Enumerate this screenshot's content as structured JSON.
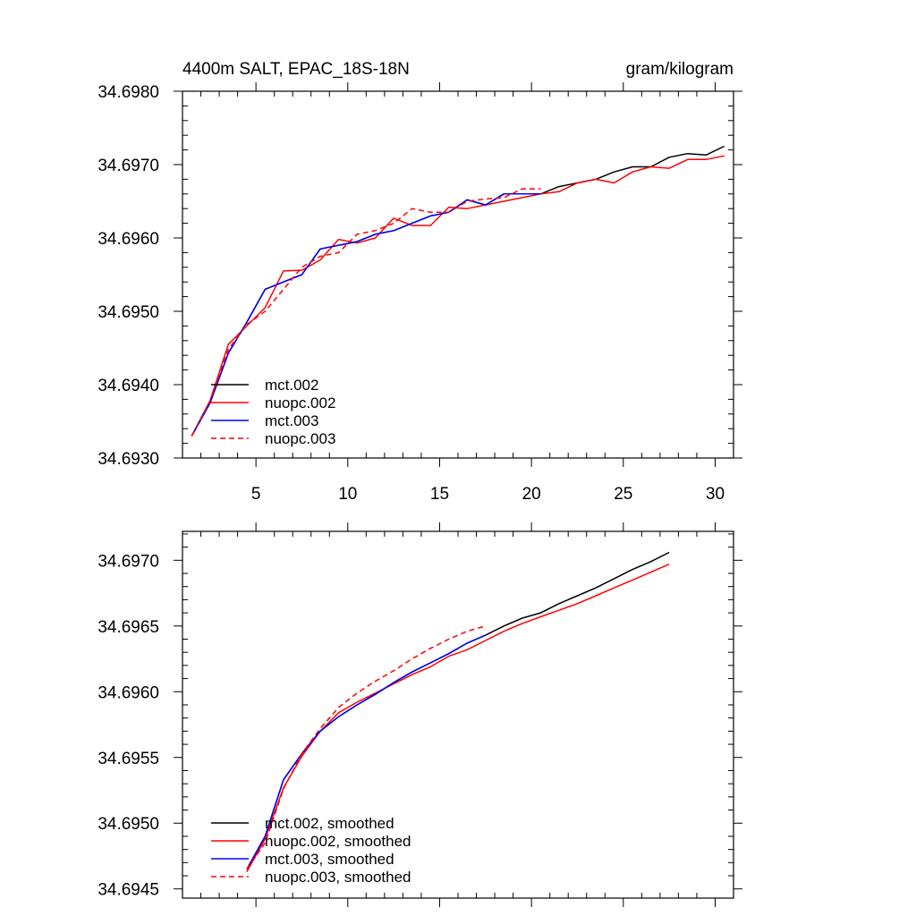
{
  "chart_data": [
    {
      "type": "line",
      "title": "4400m SALT, EPAC_18S-18N",
      "units": "gram/kilogram",
      "xlabel": "",
      "ylabel": "",
      "xlim": [
        1,
        31
      ],
      "ylim": [
        34.693,
        34.698
      ],
      "xticks": [
        5,
        10,
        15,
        20,
        25,
        30
      ],
      "xtick_labels": [
        "5",
        "10",
        "15",
        "20",
        "25",
        "30"
      ],
      "yticks": [
        34.693,
        34.694,
        34.695,
        34.696,
        34.697,
        34.698
      ],
      "ytick_labels": [
        "34.6930",
        "34.6940",
        "34.6950",
        "34.6960",
        "34.6970",
        "34.6980"
      ],
      "legend_position": "lower-left",
      "series": [
        {
          "name": "mct.002",
          "color": "#000000",
          "dash": "solid",
          "x": [
            1.5,
            2.5,
            3.5,
            4.5,
            5.5,
            6.5,
            7.5,
            8.5,
            9.5,
            10.5,
            11.5,
            12.5,
            13.5,
            14.5,
            15.5,
            16.5,
            17.5,
            18.5,
            19.5,
            20.5,
            21.5,
            22.5,
            23.5,
            24.5,
            25.5,
            26.5,
            27.5,
            28.5,
            29.5,
            30.5
          ],
          "values": [
            34.6933,
            34.69375,
            34.69443,
            34.69485,
            34.6953,
            34.6954,
            34.6955,
            34.69585,
            34.6959,
            34.69595,
            34.69605,
            34.6961,
            34.6962,
            34.6963,
            34.69635,
            34.69652,
            34.69645,
            34.6966,
            34.6966,
            34.6966,
            34.6967,
            34.69675,
            34.6968,
            34.6969,
            34.69697,
            34.69697,
            34.6971,
            34.69715,
            34.69713,
            34.69725
          ]
        },
        {
          "name": "nuopc.002",
          "color": "#ff0000",
          "dash": "solid",
          "x": [
            1.5,
            2.5,
            3.5,
            4.5,
            5.5,
            6.5,
            7.5,
            8.5,
            9.5,
            10.5,
            11.5,
            12.5,
            13.5,
            14.5,
            15.5,
            16.5,
            17.5,
            18.5,
            19.5,
            20.5,
            21.5,
            22.5,
            23.5,
            24.5,
            25.5,
            26.5,
            27.5,
            28.5,
            29.5,
            30.5
          ],
          "values": [
            34.6933,
            34.69378,
            34.69455,
            34.6948,
            34.69505,
            34.69555,
            34.69556,
            34.6957,
            34.69598,
            34.69593,
            34.696,
            34.69627,
            34.69617,
            34.69617,
            34.69642,
            34.6964,
            34.69645,
            34.6965,
            34.69655,
            34.6966,
            34.69663,
            34.69675,
            34.6968,
            34.69675,
            34.6969,
            34.69697,
            34.69695,
            34.69707,
            34.69707,
            34.69712
          ]
        },
        {
          "name": "mct.003",
          "color": "#0000ff",
          "dash": "solid",
          "x": [
            1.5,
            2.5,
            3.5,
            4.5,
            5.5,
            6.5,
            7.5,
            8.5,
            9.5,
            10.5,
            11.5,
            12.5,
            13.5,
            14.5,
            15.5,
            16.5,
            17.5,
            18.5,
            19.5,
            20.5
          ],
          "values": [
            34.6933,
            34.69375,
            34.69443,
            34.69485,
            34.6953,
            34.6954,
            34.6955,
            34.69585,
            34.6959,
            34.69595,
            34.69605,
            34.6961,
            34.6962,
            34.6963,
            34.69635,
            34.69652,
            34.69645,
            34.6966,
            34.6966,
            34.6966
          ]
        },
        {
          "name": "nuopc.003",
          "color": "#ff0000",
          "dash": "dashed",
          "x": [
            1.5,
            2.5,
            3.5,
            4.5,
            5.5,
            6.5,
            7.5,
            8.5,
            9.5,
            10.5,
            11.5,
            12.5,
            13.5,
            14.5,
            15.5,
            16.5,
            17.5,
            18.5,
            19.5,
            20.5
          ],
          "values": [
            34.6933,
            34.69378,
            34.69448,
            34.69482,
            34.695,
            34.6953,
            34.6956,
            34.69575,
            34.6958,
            34.69605,
            34.6961,
            34.6962,
            34.6964,
            34.69635,
            34.69635,
            34.6965,
            34.69653,
            34.69655,
            34.69667,
            34.69667
          ]
        }
      ]
    },
    {
      "type": "line",
      "title": "",
      "xlabel": "",
      "ylabel": "",
      "xlim": [
        1,
        31
      ],
      "ylim": [
        34.69443,
        34.69722
      ],
      "xticks": [
        5,
        10,
        15,
        20,
        25,
        30
      ],
      "yticks": [
        34.6945,
        34.695,
        34.6955,
        34.696,
        34.6965,
        34.697
      ],
      "ytick_labels": [
        "34.6945",
        "34.6950",
        "34.6955",
        "34.6960",
        "34.6965",
        "34.6970"
      ],
      "legend_position": "lower-left",
      "series": [
        {
          "name": "mct.002, smoothed",
          "color": "#000000",
          "dash": "solid",
          "x": [
            4.5,
            5.5,
            6.5,
            7.5,
            8.5,
            9.5,
            10.5,
            11.5,
            12.5,
            13.5,
            14.5,
            15.5,
            16.5,
            17.5,
            18.5,
            19.5,
            20.5,
            21.5,
            22.5,
            23.5,
            24.5,
            25.5,
            26.5,
            27.5
          ],
          "values": [
            34.69465,
            34.6949,
            34.69533,
            34.69553,
            34.6957,
            34.69581,
            34.6959,
            34.69598,
            34.69607,
            34.69615,
            34.69622,
            34.69629,
            34.69637,
            34.69643,
            34.6965,
            34.69656,
            34.6966,
            34.69667,
            34.69673,
            34.69679,
            34.69686,
            34.69693,
            34.69699,
            34.69706
          ]
        },
        {
          "name": "nuopc.002, smoothed",
          "color": "#ff0000",
          "dash": "solid",
          "x": [
            4.5,
            5.5,
            6.5,
            7.5,
            8.5,
            9.5,
            10.5,
            11.5,
            12.5,
            13.5,
            14.5,
            15.5,
            16.5,
            17.5,
            18.5,
            19.5,
            20.5,
            21.5,
            22.5,
            23.5,
            24.5,
            25.5,
            26.5,
            27.5
          ],
          "values": [
            34.69463,
            34.69488,
            34.69527,
            34.69551,
            34.6957,
            34.69584,
            34.69592,
            34.69599,
            34.69606,
            34.69613,
            34.69619,
            34.69627,
            34.69632,
            34.69639,
            34.69646,
            34.69652,
            34.69657,
            34.69662,
            34.69667,
            34.69673,
            34.69679,
            34.69685,
            34.69691,
            34.69697
          ]
        },
        {
          "name": "mct.003, smoothed",
          "color": "#0000ff",
          "dash": "solid",
          "x": [
            4.5,
            5.5,
            6.5,
            7.5,
            8.5,
            9.5,
            10.5,
            11.5,
            12.5,
            13.5,
            14.5,
            15.5,
            16.5,
            17.5
          ],
          "values": [
            34.69465,
            34.6949,
            34.69533,
            34.69553,
            34.6957,
            34.69581,
            34.6959,
            34.69598,
            34.69607,
            34.69615,
            34.69622,
            34.69629,
            34.69637,
            34.69643
          ]
        },
        {
          "name": "nuopc.003, smoothed",
          "color": "#ff0000",
          "dash": "dashed",
          "x": [
            4.5,
            5.5,
            6.5,
            7.5,
            8.5,
            9.5,
            10.5,
            11.5,
            12.5,
            13.5,
            14.5,
            15.5,
            16.5,
            17.5
          ],
          "values": [
            34.69465,
            34.69485,
            34.69526,
            34.69553,
            34.69572,
            34.69588,
            34.69599,
            34.69608,
            34.69616,
            34.69625,
            34.69633,
            34.6964,
            34.69646,
            34.6965
          ]
        }
      ]
    }
  ]
}
